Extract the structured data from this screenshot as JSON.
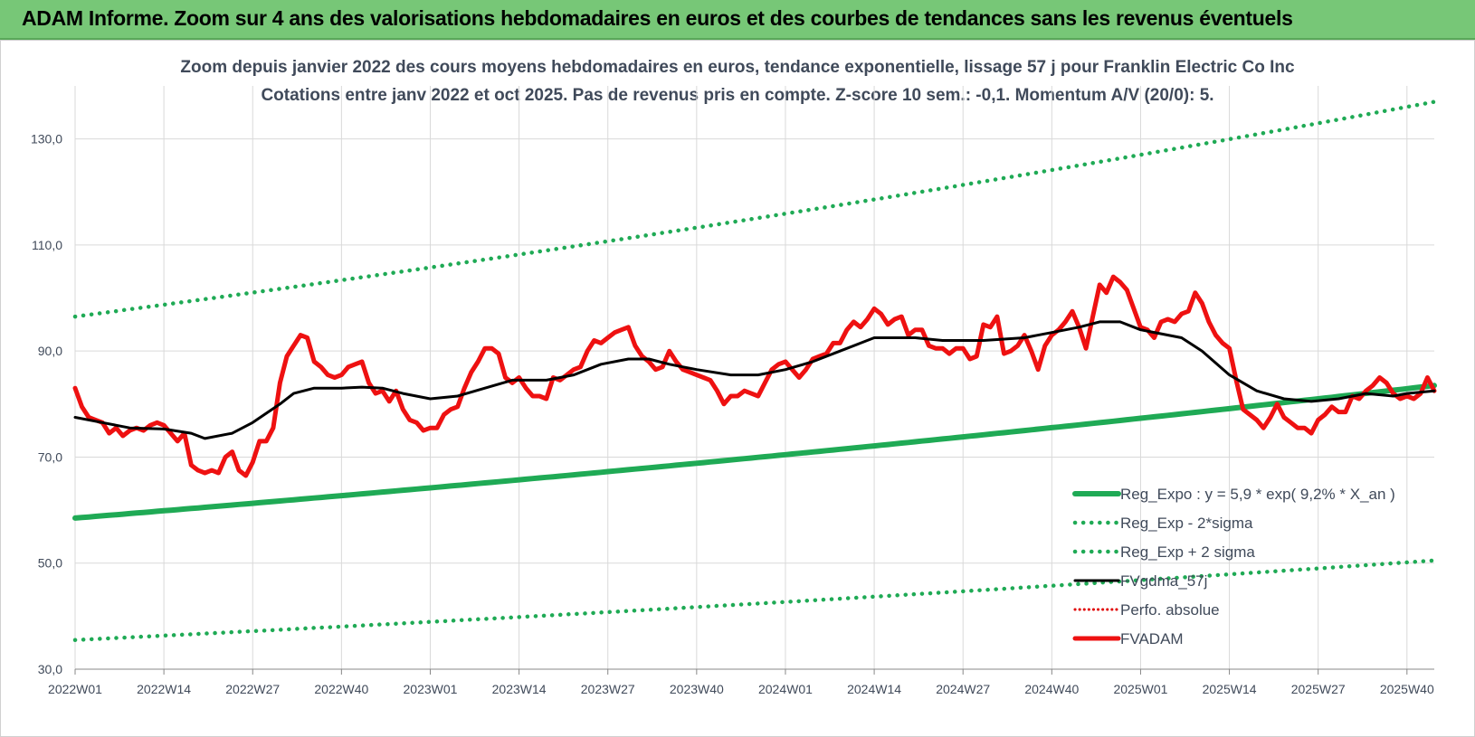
{
  "header": {
    "banner_title": "ADAM Informe. Zoom sur 4 ans des valorisations hebdomadaires en euros et des courbes de tendances sans les revenus éventuels"
  },
  "colors": {
    "banner": "#77c777",
    "reg_expo": "#1faa55",
    "bands": "#1faa55",
    "fvgdma": "#000000",
    "perfo": "#e00000",
    "fvadam": "#ee1111"
  },
  "chart_data": {
    "type": "line",
    "title": "Zoom depuis janvier 2022 des cours moyens hebdomadaires en euros, tendance exponentielle, lissage 57 j pour Franklin Electric Co Inc",
    "subtitle": "Cotations entre janv 2022 et oct 2025. Pas de revenus pris en compte. Z-score 10 sem.: -0,1.  Momentum A/V (20/0): 5.",
    "xlabel": "",
    "ylabel": "",
    "ylim": [
      30,
      140
    ],
    "yticks": [
      "30,0",
      "50,0",
      "70,0",
      "90,0",
      "110,0",
      "130,0"
    ],
    "ytick_values": [
      30,
      50,
      70,
      90,
      110,
      130
    ],
    "xtick_labels": [
      "2022W01",
      "2022W14",
      "2022W27",
      "2022W40",
      "2023W01",
      "2023W14",
      "2023W27",
      "2023W40",
      "2024W01",
      "2024W14",
      "2024W27",
      "2024W40",
      "2025W01",
      "2025W14",
      "2025W27",
      "2025W40"
    ],
    "x_range_weeks": "2022W01 - 2025W44",
    "grid": true,
    "legend_position": "bottom-right",
    "series": [
      {
        "name": "Reg_Expo : y = 5,9 * exp( 9,2% *  X_an )",
        "style": "solid-thick",
        "start": [
          "2022W01",
          58.5
        ],
        "end": [
          "2025W44",
          83.5
        ]
      },
      {
        "name": "Reg_Exp - 2*sigma",
        "style": "dotted",
        "start": [
          "2022W01",
          35.5
        ],
        "end": [
          "2025W44",
          50.5
        ]
      },
      {
        "name": "Reg_Exp + 2 sigma",
        "style": "dotted",
        "start": [
          "2022W01",
          96.5
        ],
        "end": [
          "2025W44",
          137
        ]
      },
      {
        "name": "FVgdma_57j",
        "style": "solid",
        "points": [
          [
            "2022W01",
            77.5
          ],
          [
            "2022W05",
            76.5
          ],
          [
            "2022W09",
            75.5
          ],
          [
            "2022W14",
            75.3
          ],
          [
            "2022W18",
            74.5
          ],
          [
            "2022W20",
            73.5
          ],
          [
            "2022W24",
            74.5
          ],
          [
            "2022W27",
            76.5
          ],
          [
            "2022W31",
            80
          ],
          [
            "2022W33",
            82
          ],
          [
            "2022W36",
            83
          ],
          [
            "2022W40",
            83
          ],
          [
            "2022W43",
            83.2
          ],
          [
            "2022W46",
            83
          ],
          [
            "2022W49",
            82
          ],
          [
            "2023W01",
            81
          ],
          [
            "2023W05",
            81.5
          ],
          [
            "2023W09",
            83
          ],
          [
            "2023W13",
            84.5
          ],
          [
            "2023W18",
            84.5
          ],
          [
            "2023W22",
            85.5
          ],
          [
            "2023W26",
            87.5
          ],
          [
            "2023W30",
            88.5
          ],
          [
            "2023W33",
            88.5
          ],
          [
            "2023W36",
            87.5
          ],
          [
            "2023W40",
            86.5
          ],
          [
            "2023W45",
            85.5
          ],
          [
            "2023W49",
            85.5
          ],
          [
            "2024W01",
            86.5
          ],
          [
            "2024W05",
            88
          ],
          [
            "2024W09",
            90
          ],
          [
            "2024W12",
            91.5
          ],
          [
            "2024W14",
            92.5
          ],
          [
            "2024W20",
            92.5
          ],
          [
            "2024W24",
            92
          ],
          [
            "2024W30",
            92
          ],
          [
            "2024W36",
            92.5
          ],
          [
            "2024W40",
            93.5
          ],
          [
            "2024W44",
            94.5
          ],
          [
            "2024W47",
            95.5
          ],
          [
            "2024W50",
            95.5
          ],
          [
            "2025W01",
            94
          ],
          [
            "2025W07",
            92.5
          ],
          [
            "2025W10",
            90
          ],
          [
            "2025W14",
            85.5
          ],
          [
            "2025W18",
            82.5
          ],
          [
            "2025W22",
            81
          ],
          [
            "2025W26",
            80.5
          ],
          [
            "2025W30",
            81
          ],
          [
            "2025W34",
            82
          ],
          [
            "2025W38",
            81.5
          ],
          [
            "2025W40",
            82
          ],
          [
            "2025W44",
            82.5
          ]
        ]
      },
      {
        "name": "Perfo. absolue",
        "style": "dotted",
        "points": []
      },
      {
        "name": "FVADAM",
        "style": "solid-thick",
        "points": [
          [
            "2022W01",
            83
          ],
          [
            "2022W02",
            79.5
          ],
          [
            "2022W03",
            77.5
          ],
          [
            "2022W04",
            77
          ],
          [
            "2022W05",
            76.5
          ],
          [
            "2022W06",
            74.5
          ],
          [
            "2022W07",
            75.5
          ],
          [
            "2022W08",
            74
          ],
          [
            "2022W09",
            75
          ],
          [
            "2022W10",
            75.5
          ],
          [
            "2022W11",
            75
          ],
          [
            "2022W12",
            76
          ],
          [
            "2022W13",
            76.5
          ],
          [
            "2022W14",
            76
          ],
          [
            "2022W15",
            74.5
          ],
          [
            "2022W16",
            73
          ],
          [
            "2022W17",
            74.5
          ],
          [
            "2022W18",
            68.5
          ],
          [
            "2022W19",
            67.5
          ],
          [
            "2022W20",
            67
          ],
          [
            "2022W21",
            67.5
          ],
          [
            "2022W22",
            67
          ],
          [
            "2022W23",
            70
          ],
          [
            "2022W24",
            71
          ],
          [
            "2022W25",
            67.5
          ],
          [
            "2022W26",
            66.5
          ],
          [
            "2022W27",
            69
          ],
          [
            "2022W28",
            73
          ],
          [
            "2022W29",
            73
          ],
          [
            "2022W30",
            75.5
          ],
          [
            "2022W31",
            84
          ],
          [
            "2022W32",
            89
          ],
          [
            "2022W33",
            91
          ],
          [
            "2022W34",
            93
          ],
          [
            "2022W35",
            92.5
          ],
          [
            "2022W36",
            88
          ],
          [
            "2022W37",
            87
          ],
          [
            "2022W38",
            85.5
          ],
          [
            "2022W39",
            85
          ],
          [
            "2022W40",
            85.5
          ],
          [
            "2022W41",
            87
          ],
          [
            "2022W42",
            87.5
          ],
          [
            "2022W43",
            88
          ],
          [
            "2022W44",
            84
          ],
          [
            "2022W45",
            82
          ],
          [
            "2022W46",
            82.5
          ],
          [
            "2022W47",
            80.5
          ],
          [
            "2022W48",
            82.5
          ],
          [
            "2022W49",
            79
          ],
          [
            "2022W50",
            77
          ],
          [
            "2022W51",
            76.5
          ],
          [
            "2022W52",
            75
          ],
          [
            "2023W01",
            75.5
          ],
          [
            "2023W02",
            75.5
          ],
          [
            "2023W03",
            78
          ],
          [
            "2023W04",
            79
          ],
          [
            "2023W05",
            79.5
          ],
          [
            "2023W06",
            83
          ],
          [
            "2023W07",
            86
          ],
          [
            "2023W08",
            88
          ],
          [
            "2023W09",
            90.5
          ],
          [
            "2023W10",
            90.5
          ],
          [
            "2023W11",
            89.5
          ],
          [
            "2023W12",
            85
          ],
          [
            "2023W13",
            84
          ],
          [
            "2023W14",
            85
          ],
          [
            "2023W15",
            83
          ],
          [
            "2023W16",
            81.5
          ],
          [
            "2023W17",
            81.5
          ],
          [
            "2023W18",
            81
          ],
          [
            "2023W19",
            85
          ],
          [
            "2023W20",
            84.5
          ],
          [
            "2023W21",
            85.5
          ],
          [
            "2023W22",
            86.5
          ],
          [
            "2023W23",
            87
          ],
          [
            "2023W24",
            90
          ],
          [
            "2023W25",
            92
          ],
          [
            "2023W26",
            91.5
          ],
          [
            "2023W27",
            92.5
          ],
          [
            "2023W28",
            93.5
          ],
          [
            "2023W29",
            94
          ],
          [
            "2023W30",
            94.5
          ],
          [
            "2023W31",
            91
          ],
          [
            "2023W32",
            89
          ],
          [
            "2023W33",
            88
          ],
          [
            "2023W34",
            86.5
          ],
          [
            "2023W35",
            87
          ],
          [
            "2023W36",
            90
          ],
          [
            "2023W37",
            88
          ],
          [
            "2023W38",
            86.5
          ],
          [
            "2023W39",
            86
          ],
          [
            "2023W40",
            85.5
          ],
          [
            "2023W41",
            85
          ],
          [
            "2023W42",
            84.5
          ],
          [
            "2023W43",
            82.5
          ],
          [
            "2023W44",
            80
          ],
          [
            "2023W45",
            81.5
          ],
          [
            "2023W46",
            81.5
          ],
          [
            "2023W47",
            82.5
          ],
          [
            "2023W48",
            82
          ],
          [
            "2023W49",
            81.5
          ],
          [
            "2023W50",
            84
          ],
          [
            "2023W51",
            86.5
          ],
          [
            "2023W52",
            87.5
          ],
          [
            "2024W01",
            88
          ],
          [
            "2024W02",
            86.5
          ],
          [
            "2024W03",
            85
          ],
          [
            "2024W04",
            86.5
          ],
          [
            "2024W05",
            88.5
          ],
          [
            "2024W06",
            89
          ],
          [
            "2024W07",
            89.5
          ],
          [
            "2024W08",
            91.5
          ],
          [
            "2024W09",
            91.5
          ],
          [
            "2024W10",
            94
          ],
          [
            "2024W11",
            95.5
          ],
          [
            "2024W12",
            94.5
          ],
          [
            "2024W13",
            96
          ],
          [
            "2024W14",
            98
          ],
          [
            "2024W15",
            97
          ],
          [
            "2024W16",
            95
          ],
          [
            "2024W17",
            96
          ],
          [
            "2024W18",
            96.5
          ],
          [
            "2024W19",
            93
          ],
          [
            "2024W20",
            94
          ],
          [
            "2024W21",
            94
          ],
          [
            "2024W22",
            91
          ],
          [
            "2024W23",
            90.5
          ],
          [
            "2024W24",
            90.5
          ],
          [
            "2024W25",
            89.5
          ],
          [
            "2024W26",
            90.5
          ],
          [
            "2024W27",
            90.5
          ],
          [
            "2024W28",
            88.5
          ],
          [
            "2024W29",
            89
          ],
          [
            "2024W30",
            95
          ],
          [
            "2024W31",
            94.5
          ],
          [
            "2024W32",
            96.5
          ],
          [
            "2024W33",
            89.5
          ],
          [
            "2024W34",
            90
          ],
          [
            "2024W35",
            91
          ],
          [
            "2024W36",
            93
          ],
          [
            "2024W37",
            90
          ],
          [
            "2024W38",
            86.5
          ],
          [
            "2024W39",
            91
          ],
          [
            "2024W40",
            93
          ],
          [
            "2024W41",
            94
          ],
          [
            "2024W42",
            95.5
          ],
          [
            "2024W43",
            97.5
          ],
          [
            "2024W44",
            94.5
          ],
          [
            "2024W45",
            90.5
          ],
          [
            "2024W46",
            96.5
          ],
          [
            "2024W47",
            102.5
          ],
          [
            "2024W48",
            101
          ],
          [
            "2024W49",
            104
          ],
          [
            "2024W50",
            103
          ],
          [
            "2024W51",
            101.5
          ],
          [
            "2024W52",
            98
          ],
          [
            "2025W01",
            94.5
          ],
          [
            "2025W02",
            94
          ],
          [
            "2025W03",
            92.5
          ],
          [
            "2025W04",
            95.5
          ],
          [
            "2025W05",
            96
          ],
          [
            "2025W06",
            95.5
          ],
          [
            "2025W07",
            97
          ],
          [
            "2025W08",
            97.5
          ],
          [
            "2025W09",
            101
          ],
          [
            "2025W10",
            99
          ],
          [
            "2025W11",
            95.5
          ],
          [
            "2025W12",
            93
          ],
          [
            "2025W13",
            91.5
          ],
          [
            "2025W14",
            90.5
          ],
          [
            "2025W15",
            84.5
          ],
          [
            "2025W16",
            79
          ],
          [
            "2025W17",
            78
          ],
          [
            "2025W18",
            77
          ],
          [
            "2025W19",
            75.5
          ],
          [
            "2025W20",
            77.5
          ],
          [
            "2025W21",
            80
          ],
          [
            "2025W22",
            77.5
          ],
          [
            "2025W23",
            76.5
          ],
          [
            "2025W24",
            75.5
          ],
          [
            "2025W25",
            75.5
          ],
          [
            "2025W26",
            74.5
          ],
          [
            "2025W27",
            77
          ],
          [
            "2025W28",
            78
          ],
          [
            "2025W29",
            79.5
          ],
          [
            "2025W30",
            78.5
          ],
          [
            "2025W31",
            78.5
          ],
          [
            "2025W32",
            81.5
          ],
          [
            "2025W33",
            81
          ],
          [
            "2025W34",
            82.5
          ],
          [
            "2025W35",
            83.5
          ],
          [
            "2025W36",
            85
          ],
          [
            "2025W37",
            84
          ],
          [
            "2025W38",
            82
          ],
          [
            "2025W39",
            81
          ],
          [
            "2025W40",
            81.5
          ],
          [
            "2025W41",
            81
          ],
          [
            "2025W42",
            82
          ],
          [
            "2025W43",
            85
          ],
          [
            "2025W44",
            82.5
          ]
        ]
      }
    ]
  }
}
